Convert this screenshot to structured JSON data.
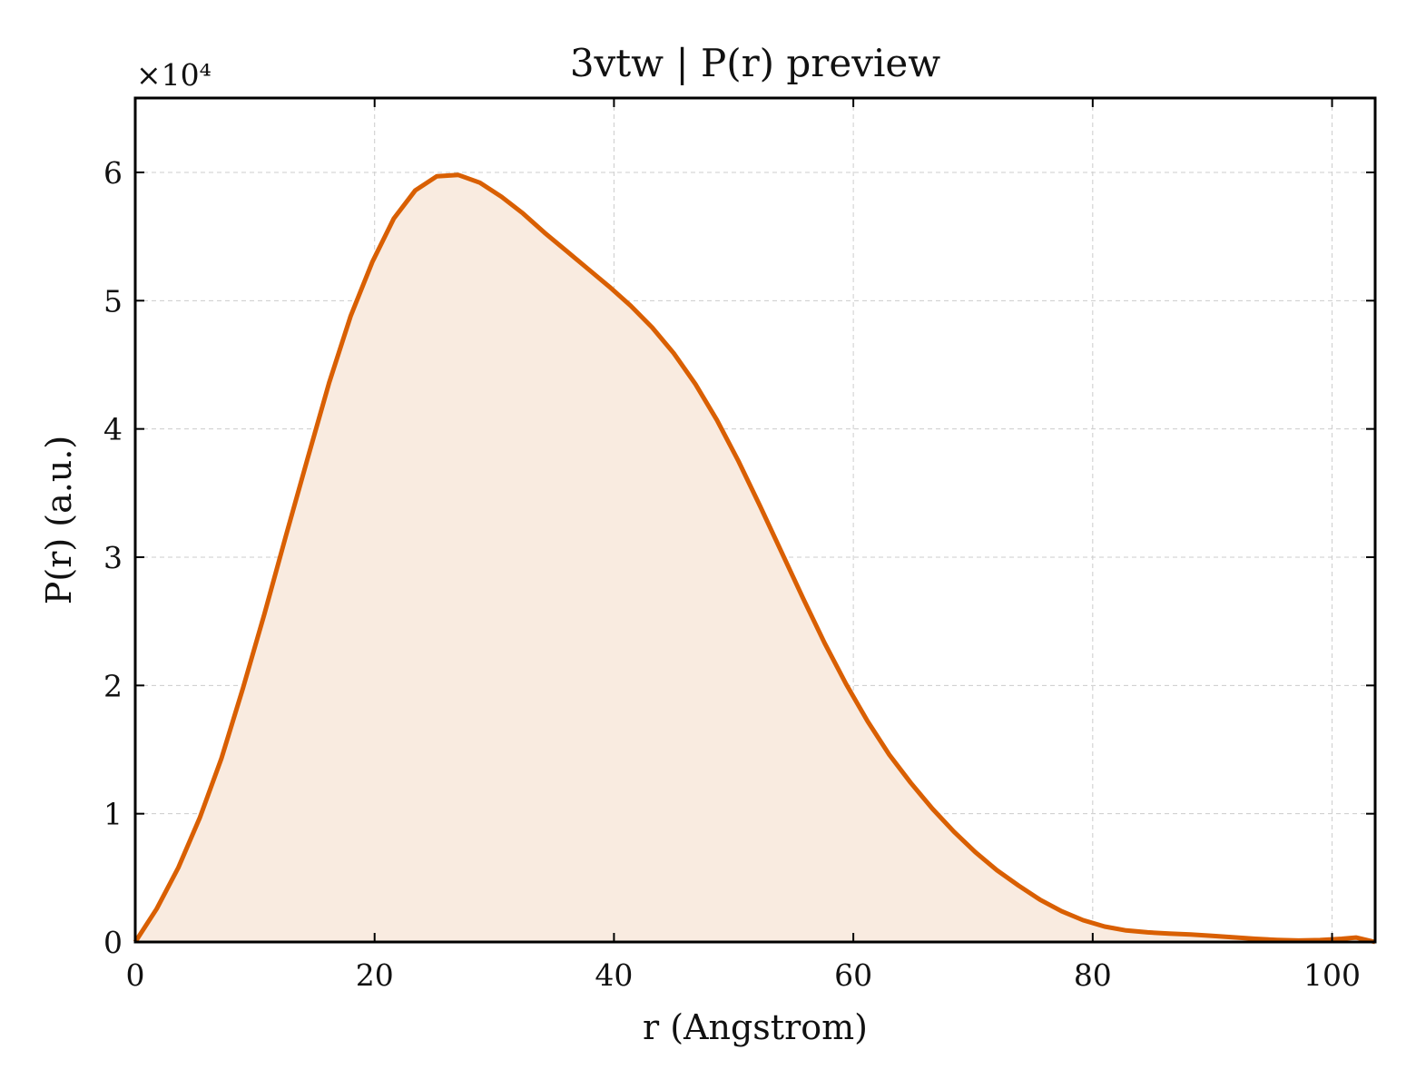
{
  "chart_data": {
    "type": "area",
    "title": "3vtw | P(r) preview",
    "xlabel": "r (Angstrom)",
    "ylabel": "P(r) (a.u.)",
    "y_multiplier": "×10⁴",
    "xlim": [
      0,
      103.6
    ],
    "ylim": [
      0,
      65800
    ],
    "x_ticks": [
      0,
      20,
      40,
      60,
      80,
      100
    ],
    "y_ticks": [
      0,
      10000,
      20000,
      30000,
      40000,
      50000,
      60000
    ],
    "x_tick_labels": [
      "0",
      "20",
      "40",
      "60",
      "80",
      "100"
    ],
    "y_tick_labels": [
      "0",
      "1",
      "2",
      "3",
      "4",
      "5",
      "6"
    ],
    "grid": true,
    "line_color": "#d95f02",
    "fill_color": "#f9ebe0",
    "series": [
      {
        "x": [
          0,
          1.8,
          3.6,
          5.4,
          7.2,
          9.0,
          10.8,
          12.6,
          14.4,
          16.2,
          18.0,
          19.8,
          21.6,
          23.4,
          25.2,
          27.0,
          28.8,
          30.6,
          32.4,
          34.2,
          36.0,
          37.8,
          39.6,
          41.4,
          43.2,
          45.0,
          46.8,
          48.6,
          50.4,
          52.2,
          54.0,
          55.8,
          57.6,
          59.4,
          61.2,
          63.0,
          64.8,
          66.6,
          68.4,
          70.2,
          72.0,
          73.8,
          75.6,
          77.4,
          79.2,
          81.0,
          82.8,
          84.6,
          86.4,
          88.2,
          90.0,
          91.8,
          93.6,
          95.4,
          97.2,
          99.0,
          100.8,
          102.0,
          103.6
        ],
        "y": [
          0,
          2600,
          5800,
          9700,
          14300,
          19800,
          25600,
          31700,
          37700,
          43600,
          48800,
          53000,
          56400,
          58600,
          59700,
          59800,
          59200,
          58100,
          56800,
          55300,
          53900,
          52500,
          51100,
          49600,
          47900,
          45900,
          43500,
          40700,
          37500,
          34000,
          30400,
          26800,
          23300,
          20100,
          17200,
          14600,
          12400,
          10400,
          8600,
          7000,
          5600,
          4400,
          3300,
          2400,
          1700,
          1200,
          900,
          750,
          650,
          580,
          480,
          360,
          250,
          160,
          110,
          150,
          250,
          350,
          0
        ]
      }
    ]
  }
}
